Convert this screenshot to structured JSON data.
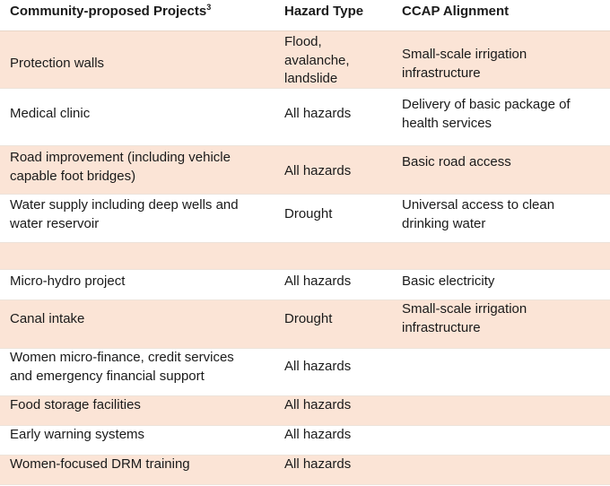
{
  "table": {
    "headers": {
      "project": "Community-proposed Projects",
      "project_footnote": "3",
      "hazard": "Hazard Type",
      "ccap": "CCAP Alignment"
    },
    "rows": [
      {
        "project": [
          "Protection walls"
        ],
        "hazard": [
          "Flood,",
          "avalanche,",
          "landslide"
        ],
        "ccap": [
          "Small-scale irrigation",
          "infrastructure"
        ]
      },
      {
        "project": [
          "Medical clinic"
        ],
        "hazard": [
          "All hazards"
        ],
        "ccap": [
          "Delivery of basic package of",
          "health services"
        ]
      },
      {
        "project": [
          "Road improvement (including vehicle",
          "capable foot bridges)"
        ],
        "hazard": [
          "All hazards"
        ],
        "ccap": [
          "Basic road access"
        ]
      },
      {
        "project": [
          "Water supply including deep wells and",
          "water reservoir"
        ],
        "hazard": [
          "Drought"
        ],
        "ccap": [
          "Universal access to clean",
          "drinking water"
        ]
      },
      {
        "project": [],
        "hazard": [],
        "ccap": []
      },
      {
        "project": [
          "Micro-hydro project"
        ],
        "hazard": [
          "All hazards"
        ],
        "ccap": [
          "Basic electricity"
        ]
      },
      {
        "project": [
          "Canal intake"
        ],
        "hazard": [
          "Drought"
        ],
        "ccap": [
          "Small-scale irrigation",
          "infrastructure"
        ]
      },
      {
        "project": [
          "Women micro-finance, credit services",
          "and emergency financial support"
        ],
        "hazard": [
          "All hazards"
        ],
        "ccap": []
      },
      {
        "project": [
          "Food storage facilities"
        ],
        "hazard": [
          "All hazards"
        ],
        "ccap": []
      },
      {
        "project": [
          "Early warning systems"
        ],
        "hazard": [
          "All hazards"
        ],
        "ccap": []
      },
      {
        "project": [
          "Women-focused DRM training"
        ],
        "hazard": [
          "All hazards"
        ],
        "ccap": []
      }
    ]
  }
}
